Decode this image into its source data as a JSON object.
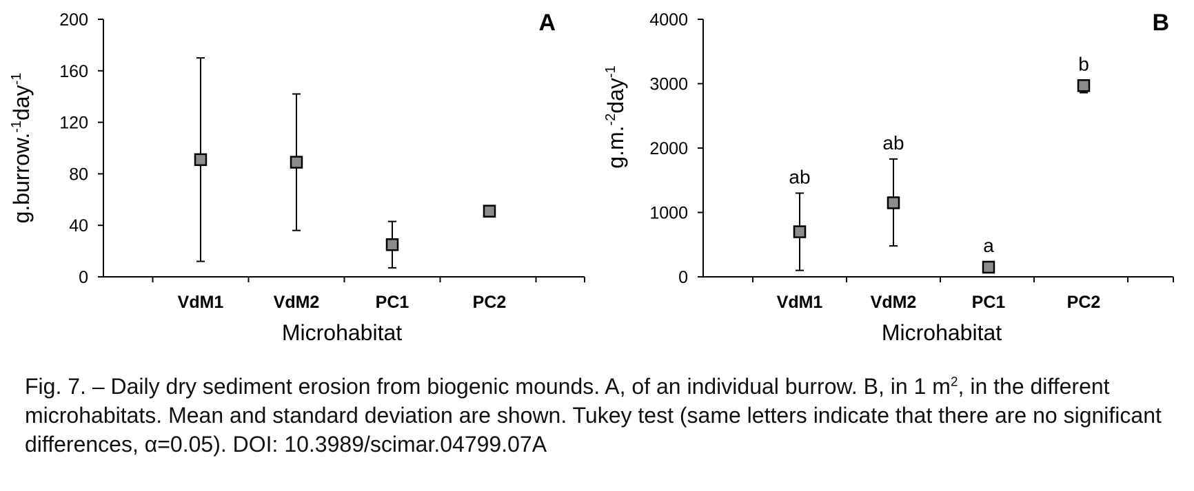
{
  "chart_data": [
    {
      "type": "scatter",
      "panel": "A",
      "xlabel": "Microhabitat",
      "ylabel": {
        "base": "g.burrow.",
        "sup1": "-1",
        "mid": "day",
        "sup2": "-1"
      },
      "ylim": [
        0,
        200
      ],
      "yticks": [
        "0",
        "40",
        "80",
        "120",
        "160",
        "200"
      ],
      "categories": [
        "VdM1",
        "VdM2",
        "PC1",
        "PC2"
      ],
      "series": [
        {
          "values": [
            91,
            89,
            25,
            51
          ],
          "error_low": [
            12,
            36,
            7,
            51
          ],
          "error_high": [
            170,
            142,
            43,
            51
          ]
        }
      ],
      "significance_letters": [
        "",
        "",
        "",
        ""
      ],
      "grid": false
    },
    {
      "type": "scatter",
      "panel": "B",
      "xlabel": "Microhabitat",
      "ylabel": {
        "base": "g.m.",
        "sup1": "-2",
        "mid": "day",
        "sup2": "-1"
      },
      "ylim": [
        0,
        4000
      ],
      "yticks": [
        "0",
        "1000",
        "2000",
        "3000",
        "4000"
      ],
      "categories": [
        "VdM1",
        "VdM2",
        "PC1",
        "PC2"
      ],
      "series": [
        {
          "values": [
            700,
            1150,
            150,
            2970
          ],
          "error_low": [
            100,
            480,
            100,
            2860
          ],
          "error_high": [
            1300,
            1830,
            200,
            3000
          ]
        }
      ],
      "significance_letters": [
        "ab",
        "ab",
        "a",
        "b"
      ],
      "grid": false
    }
  ],
  "caption": {
    "part1": "Fig. 7. – Daily dry sediment erosion from biogenic mounds. A, of an individual burrow. B, in 1 m",
    "sup": "2",
    "part2": ", in the different microhabitats. Mean and standard deviation are shown. Tukey test (same letters indicate that there are no significant differences, α=0.05). DOI: 10.3989/scimar.04799.07A"
  }
}
